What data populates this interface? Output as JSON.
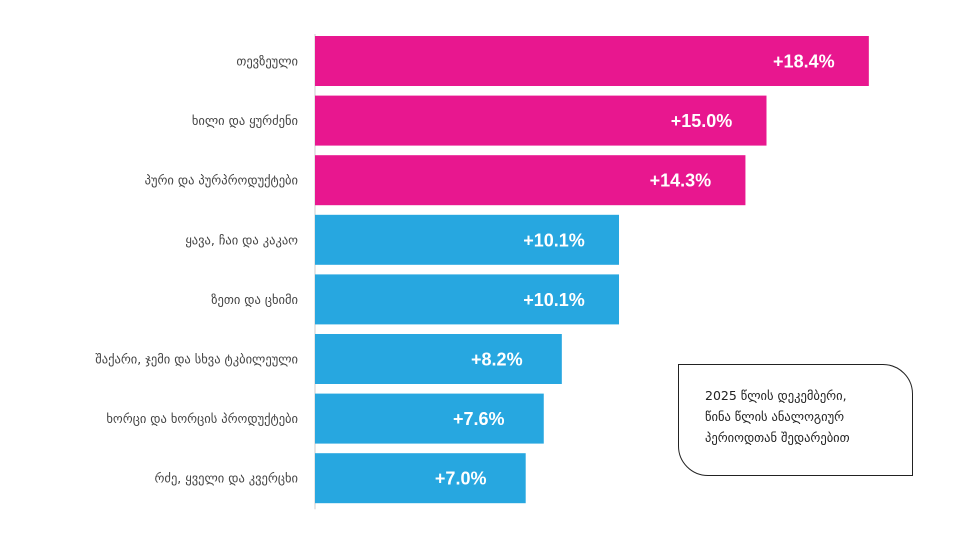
{
  "chart_data": {
    "type": "bar",
    "orientation": "horizontal",
    "title": "",
    "xlabel": "",
    "ylabel": "",
    "xlim": [
      0,
      20
    ],
    "grid": false,
    "categories": [
      "თევზეული",
      "ხილი და ყურძენი",
      "პური და პურპროდუქტები",
      "ყავა, ჩაი და კაკაო",
      "ზეთი და ცხიმი",
      "შაქარი, ჯემი და სხვა ტკბილეული",
      "ხორცი და ხორცის პროდუქტები",
      "რძე, ყველი და კვერცხი"
    ],
    "values": [
      18.4,
      15.0,
      14.3,
      10.1,
      10.1,
      8.2,
      7.6,
      7.0
    ],
    "value_labels": [
      "+18.4%",
      "+15.0%",
      "+14.3%",
      "+10.1%",
      "+10.1%",
      "+8.2%",
      "+7.6%",
      "+7.0%"
    ],
    "bar_colors": [
      "#e8178f",
      "#e8178f",
      "#e8178f",
      "#27a7e0",
      "#27a7e0",
      "#27a7e0",
      "#27a7e0",
      "#27a7e0"
    ]
  },
  "colors": {
    "highlight": "#e8178f",
    "standard": "#27a7e0",
    "category_text": "#444444",
    "value_text": "#ffffff",
    "axis": "#cccccc"
  },
  "note": {
    "lines": [
      "2025 წლის დეკემბერი,",
      "წინა წლის ანალოგიურ",
      "პერიოდთან შედარებით"
    ]
  }
}
